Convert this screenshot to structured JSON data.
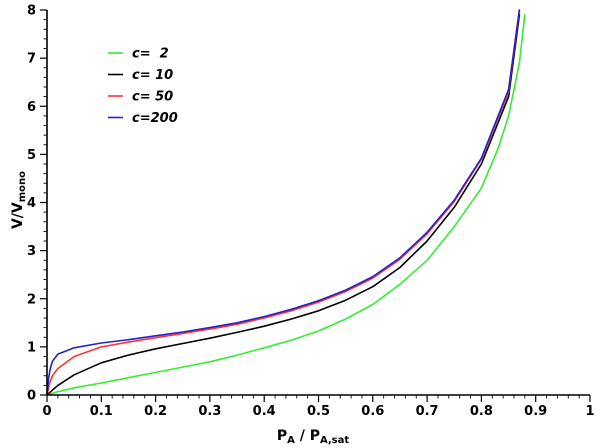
{
  "chart_data": {
    "type": "line",
    "xlabel": {
      "main": "P",
      "sub1": "A",
      "sep": " / P",
      "sub2": "A,sat"
    },
    "ylabel": {
      "main": "V/V",
      "sub": "mono"
    },
    "xlim": [
      0,
      1
    ],
    "ylim": [
      0,
      8
    ],
    "xticks": [
      0,
      0.1,
      0.2,
      0.3,
      0.4,
      0.5,
      0.6,
      0.7,
      0.8,
      0.9,
      1
    ],
    "yticks": [
      0,
      1,
      2,
      3,
      4,
      5,
      6,
      7,
      8
    ],
    "xtick_labels": [
      "0",
      "0.1",
      "0.2",
      "0.3",
      "0.4",
      "0.5",
      "0.6",
      "0.7",
      "0.8",
      "0.9",
      "1"
    ],
    "ytick_labels": [
      "0",
      "1",
      "2",
      "3",
      "4",
      "5",
      "6",
      "7",
      "8"
    ],
    "legend_position": "top-left",
    "grid": false,
    "series": [
      {
        "name": "c=  2",
        "color": "#33ee33",
        "x": [
          0,
          0.02,
          0.05,
          0.1,
          0.15,
          0.2,
          0.25,
          0.3,
          0.35,
          0.4,
          0.45,
          0.5,
          0.55,
          0.6,
          0.65,
          0.7,
          0.75,
          0.8,
          0.83,
          0.85,
          0.87,
          0.88
        ],
        "y": [
          0,
          0.07,
          0.15,
          0.25,
          0.36,
          0.47,
          0.58,
          0.69,
          0.83,
          0.98,
          1.14,
          1.33,
          1.58,
          1.88,
          2.3,
          2.8,
          3.5,
          4.3,
          5.1,
          5.8,
          6.9,
          7.9
        ]
      },
      {
        "name": "c= 10",
        "color": "#000000",
        "x": [
          0,
          0.01,
          0.02,
          0.05,
          0.1,
          0.15,
          0.2,
          0.25,
          0.3,
          0.35,
          0.4,
          0.45,
          0.5,
          0.55,
          0.6,
          0.65,
          0.7,
          0.75,
          0.8,
          0.85,
          0.87
        ],
        "y": [
          0,
          0.1,
          0.2,
          0.42,
          0.67,
          0.83,
          0.96,
          1.07,
          1.18,
          1.3,
          1.43,
          1.58,
          1.75,
          1.97,
          2.25,
          2.65,
          3.2,
          3.9,
          4.8,
          6.2,
          7.9
        ]
      },
      {
        "name": "c= 50",
        "color": "#ff3333",
        "x": [
          0,
          0.005,
          0.01,
          0.02,
          0.05,
          0.1,
          0.15,
          0.2,
          0.25,
          0.3,
          0.35,
          0.4,
          0.45,
          0.5,
          0.55,
          0.6,
          0.65,
          0.7,
          0.75,
          0.8,
          0.85,
          0.87
        ],
        "y": [
          0,
          0.25,
          0.4,
          0.55,
          0.8,
          1.0,
          1.1,
          1.19,
          1.28,
          1.37,
          1.47,
          1.6,
          1.75,
          1.93,
          2.15,
          2.43,
          2.82,
          3.35,
          4.02,
          4.9,
          6.3,
          8.0
        ]
      },
      {
        "name": "c=200",
        "color": "#2222cc",
        "x": [
          0,
          0.003,
          0.006,
          0.01,
          0.02,
          0.05,
          0.1,
          0.15,
          0.2,
          0.25,
          0.3,
          0.35,
          0.4,
          0.45,
          0.5,
          0.55,
          0.6,
          0.65,
          0.7,
          0.75,
          0.8,
          0.85,
          0.87
        ],
        "y": [
          0,
          0.35,
          0.55,
          0.7,
          0.85,
          0.98,
          1.08,
          1.15,
          1.23,
          1.31,
          1.4,
          1.5,
          1.63,
          1.78,
          1.96,
          2.18,
          2.46,
          2.85,
          3.38,
          4.05,
          4.92,
          6.35,
          8.0
        ]
      }
    ]
  }
}
